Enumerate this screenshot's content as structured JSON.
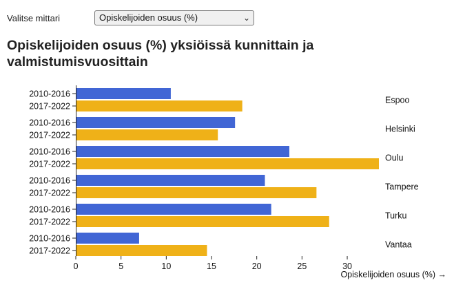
{
  "controls": {
    "label": "Valitse mittari",
    "selected": "Opiskelijoiden osuus (%)",
    "chevron_icon": "chevron-down-icon"
  },
  "colors": {
    "series_1": "#4166d5",
    "series_2": "#efb118"
  },
  "chart_data": {
    "type": "bar",
    "orientation": "horizontal",
    "title": "Opiskelijoiden osuus (%) yksiöissä kunnittain ja valmistumisvuosittain",
    "xlabel": "Opiskelijoiden osuus (%) →",
    "xlim": [
      0,
      33.5
    ],
    "xticks": [
      0,
      5,
      10,
      15,
      20,
      25,
      30
    ],
    "categories": [
      "Espoo",
      "Helsinki",
      "Oulu",
      "Tampere",
      "Turku",
      "Vantaa"
    ],
    "series": [
      {
        "name": "2010-2016",
        "values": [
          10.5,
          17.6,
          23.6,
          20.9,
          21.6,
          7.0
        ]
      },
      {
        "name": "2017-2022",
        "values": [
          18.4,
          15.7,
          33.5,
          26.6,
          28.0,
          14.5
        ]
      }
    ],
    "grid": false,
    "legend": "none"
  }
}
